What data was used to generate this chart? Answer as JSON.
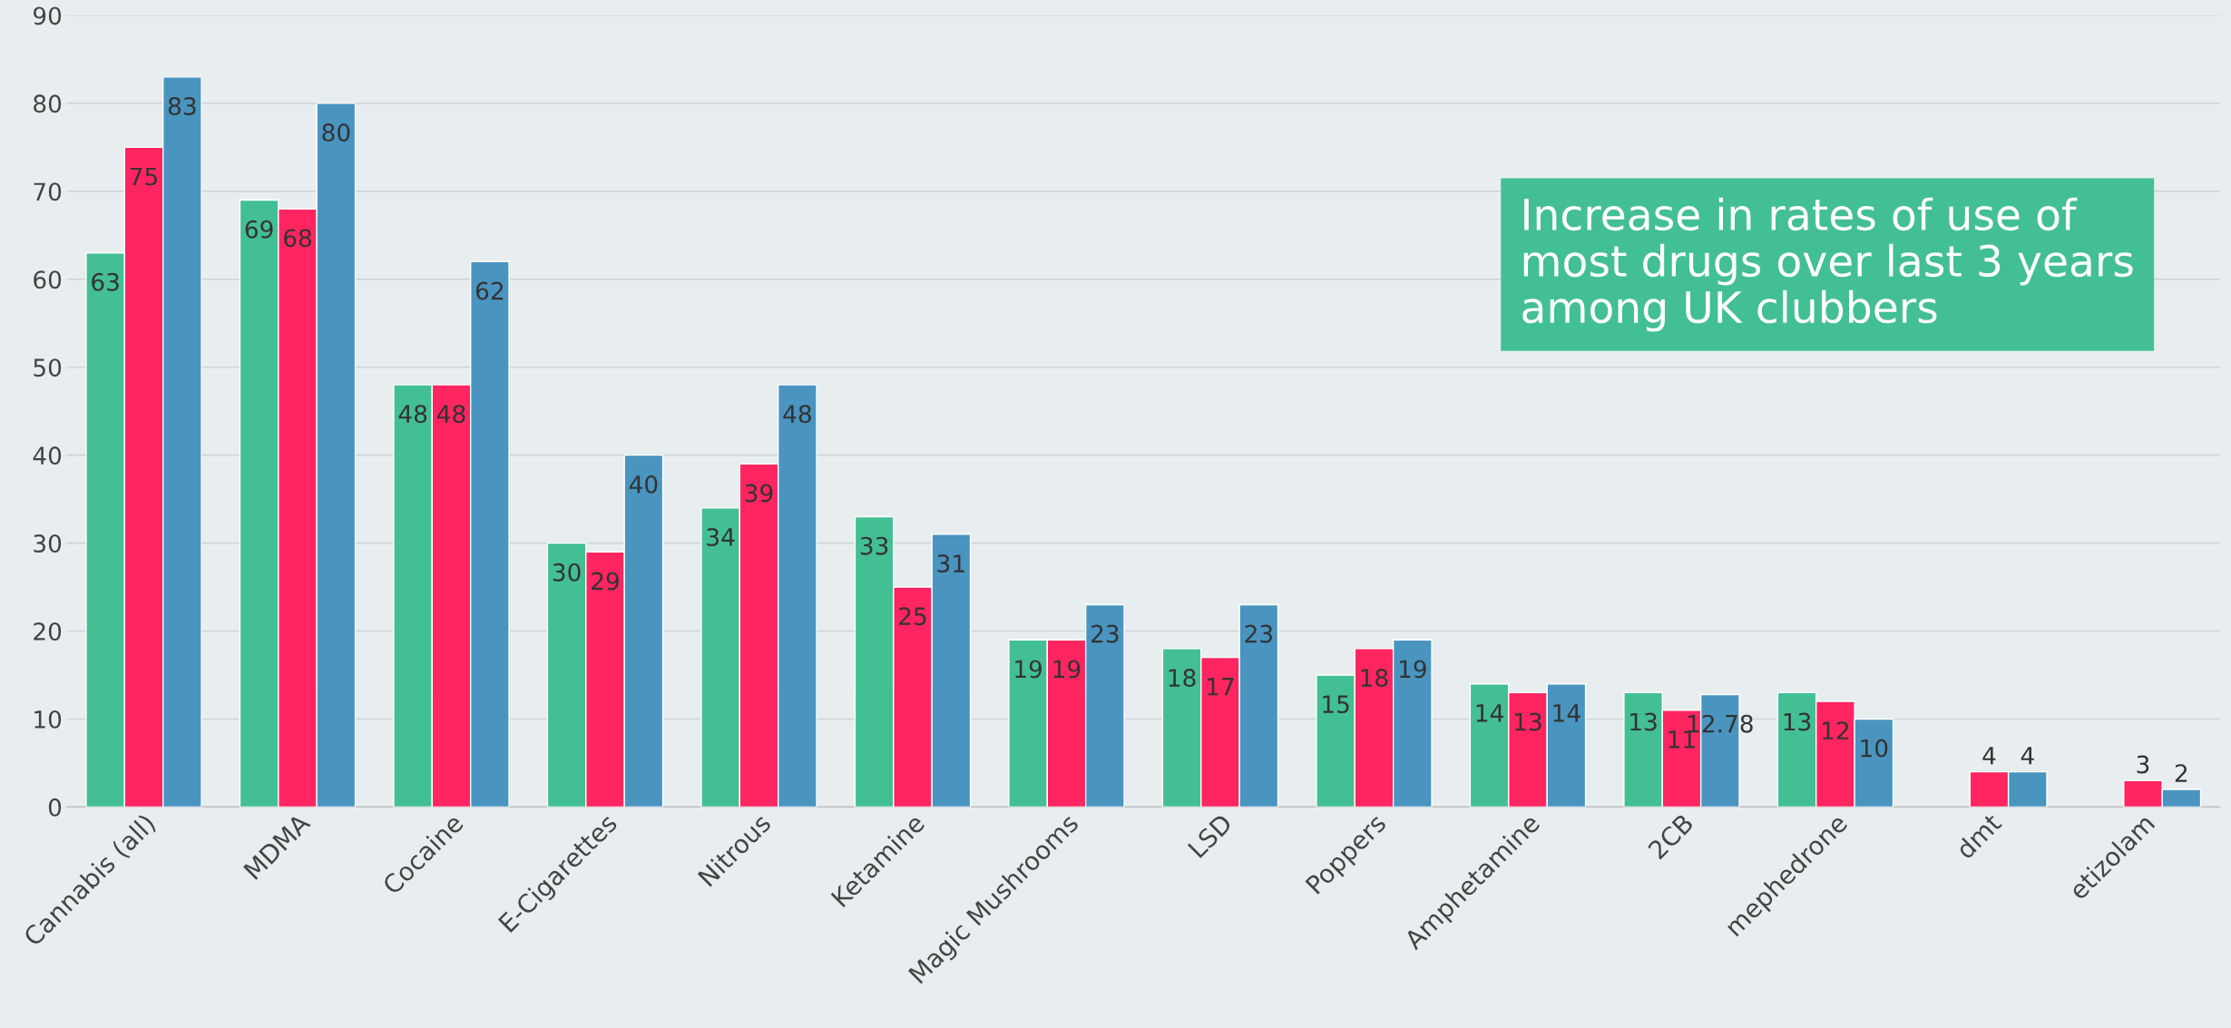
{
  "chart_data": {
    "type": "bar",
    "categories": [
      "Cannabis (all)",
      "MDMA",
      "Cocaine",
      "E-Cigarettes",
      "Nitrous",
      "Ketamine",
      "Magic Mushrooms",
      "LSD",
      "Poppers",
      "Amphetamine",
      "2CB",
      "mephedrone",
      "dmt",
      "etizolam"
    ],
    "series": [
      {
        "color": "#43bf94",
        "values": [
          63,
          69,
          48,
          30,
          34,
          33,
          19,
          18,
          15,
          14,
          13,
          13,
          null,
          null
        ]
      },
      {
        "color": "#ff2560",
        "values": [
          75,
          68,
          48,
          29,
          39,
          25,
          19,
          17,
          18,
          13,
          11,
          12,
          4,
          3
        ]
      },
      {
        "color": "#4a94c0",
        "values": [
          83,
          80,
          62,
          40,
          48,
          31,
          23,
          23,
          19,
          14,
          12.78,
          10,
          4,
          2
        ]
      }
    ],
    "annotations": [
      "Increase in rates of use of\nmost drugs over last 3 years\namong UK clubbers"
    ],
    "ylim": [
      0,
      90
    ],
    "yticks": [
      0,
      10,
      20,
      30,
      40,
      50,
      60,
      70,
      80,
      90
    ],
    "grid": "y",
    "data_labels": true
  }
}
